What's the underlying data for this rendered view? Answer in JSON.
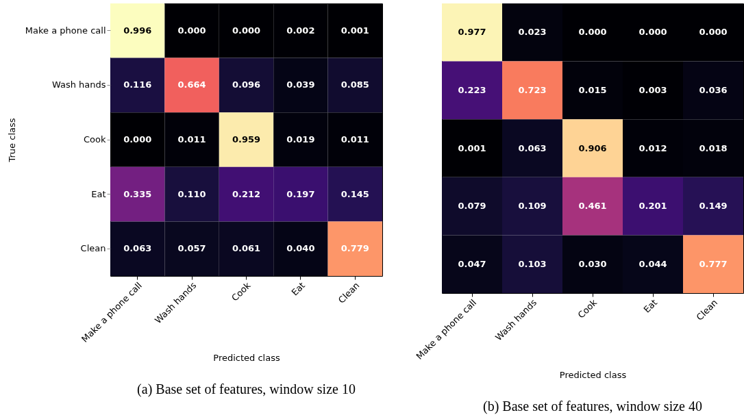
{
  "chart_data": [
    {
      "type": "heatmap",
      "title": "(a) Base set of features, window size 10",
      "xlabel": "Predicted class",
      "ylabel": "True class",
      "categories": [
        "Make a phone call",
        "Wash hands",
        "Cook",
        "Eat",
        "Clean"
      ],
      "y_categories": [
        "Make a phone call",
        "Wash hands",
        "Cook",
        "Eat",
        "Clean"
      ],
      "cells": [
        [
          0.996,
          0.0,
          0.0,
          0.002,
          0.001
        ],
        [
          0.116,
          0.664,
          0.096,
          0.039,
          0.085
        ],
        [
          0.0,
          0.011,
          0.959,
          0.019,
          0.011
        ],
        [
          0.335,
          0.11,
          0.212,
          0.197,
          0.145
        ],
        [
          0.063,
          0.057,
          0.061,
          0.04,
          0.779
        ]
      ],
      "cell_labels": [
        [
          "0.996",
          "0.000",
          "0.000",
          "0.002",
          "0.001"
        ],
        [
          "0.116",
          "0.664",
          "0.096",
          "0.039",
          "0.085"
        ],
        [
          "0.000",
          "0.011",
          "0.959",
          "0.019",
          "0.011"
        ],
        [
          "0.335",
          "0.110",
          "0.212",
          "0.197",
          "0.145"
        ],
        [
          "0.063",
          "0.057",
          "0.061",
          "0.040",
          "0.779"
        ]
      ]
    },
    {
      "type": "heatmap",
      "title": "(b) Base set of features, window size 40",
      "xlabel": "Predicted class",
      "tick_labels": "x",
      "categories": [
        "Make a phone call",
        "Wash hands",
        "Cook",
        "Eat",
        "Clean"
      ],
      "y_categories": [
        null,
        null,
        null,
        null,
        null
      ],
      "cells": [
        [
          0.977,
          0.023,
          0.0,
          0.0,
          0.0
        ],
        [
          0.223,
          0.723,
          0.015,
          0.003,
          0.036
        ],
        [
          0.001,
          0.063,
          0.906,
          0.012,
          0.018
        ],
        [
          0.079,
          0.109,
          0.461,
          0.201,
          0.149
        ],
        [
          0.047,
          0.103,
          0.03,
          0.044,
          0.777
        ]
      ],
      "cell_labels": [
        [
          "0.977",
          "0.023",
          "0.000",
          "0.000",
          "0.000"
        ],
        [
          "0.223",
          "0.723",
          "0.015",
          "0.003",
          "0.036"
        ],
        [
          "0.001",
          "0.063",
          "0.906",
          "0.012",
          "0.018"
        ],
        [
          "0.079",
          "0.109",
          "0.461",
          "0.201",
          "0.149"
        ],
        [
          "0.047",
          "0.103",
          "0.030",
          "0.044",
          "0.777"
        ]
      ]
    }
  ]
}
